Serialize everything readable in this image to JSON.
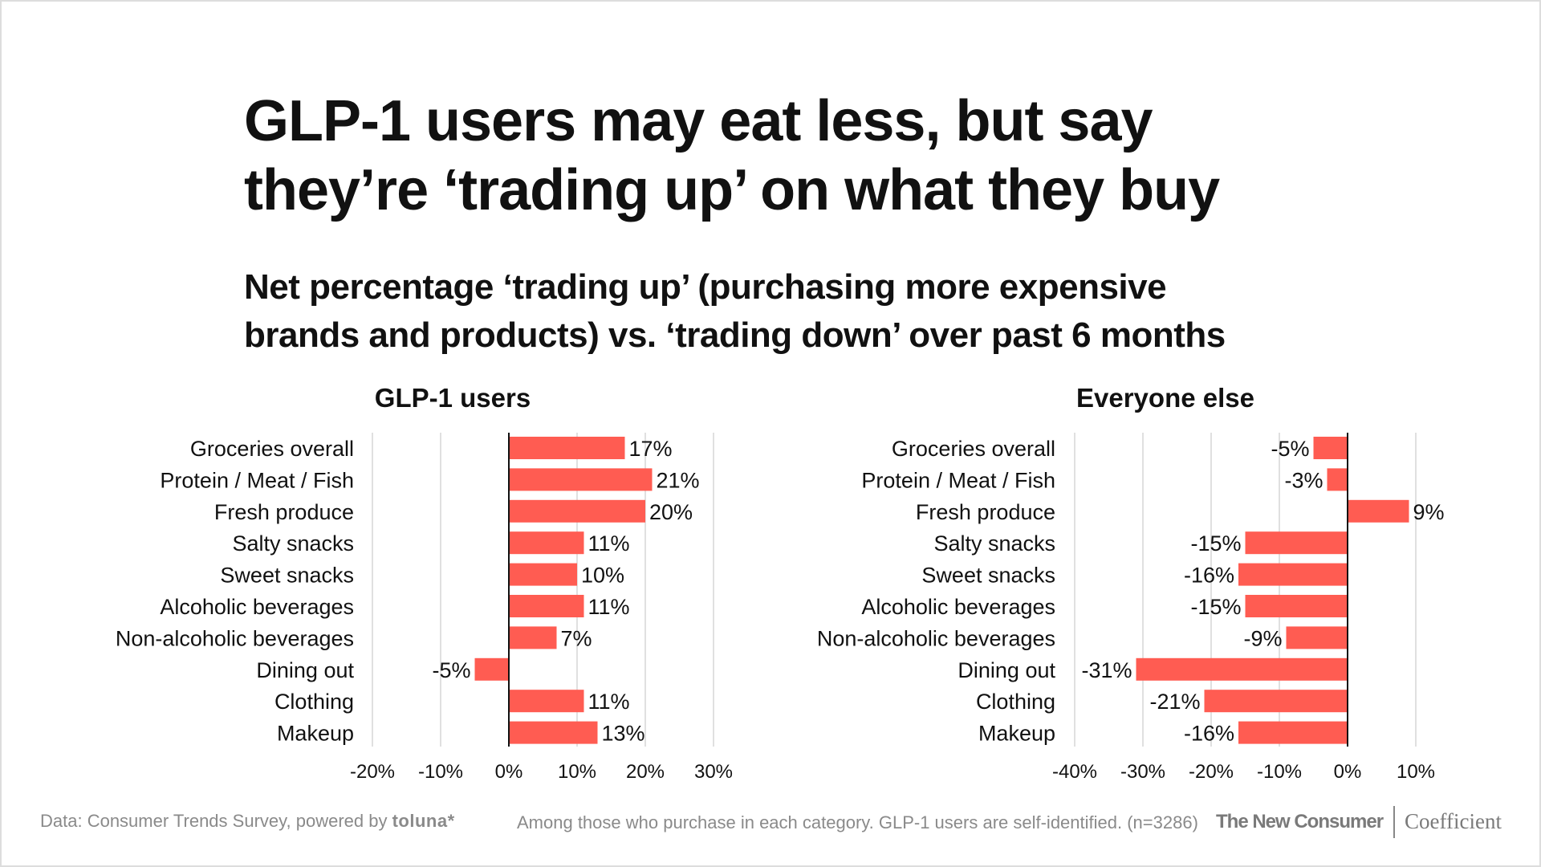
{
  "title_lines": [
    "GLP-1 users may eat less, but say",
    "they’re ‘trading up’ on what they buy"
  ],
  "subtitle_lines": [
    "Net percentage ‘trading up’ (purchasing more expensive",
    "brands and products) vs. ‘trading down’ over past 6 months"
  ],
  "colors": {
    "bar": "#ff5c52",
    "grid": "#d6d6d6",
    "axis": "#111111"
  },
  "chart_data": [
    {
      "type": "bar",
      "orientation": "horizontal",
      "title": "GLP-1 users",
      "categories": [
        "Groceries overall",
        "Protein / Meat / Fish",
        "Fresh produce",
        "Salty snacks",
        "Sweet snacks",
        "Alcoholic beverages",
        "Non-alcoholic beverages",
        "Dining out",
        "Clothing",
        "Makeup"
      ],
      "values": [
        17,
        21,
        20,
        11,
        10,
        11,
        7,
        -5,
        11,
        13
      ],
      "unit": "%",
      "xlim": [
        -20,
        30
      ],
      "ticks": [
        -20,
        -10,
        0,
        10,
        20,
        30
      ],
      "tick_labels": [
        "-20%",
        "-10%",
        "0%",
        "10%",
        "20%",
        "30%"
      ],
      "grid": true
    },
    {
      "type": "bar",
      "orientation": "horizontal",
      "title": "Everyone else",
      "categories": [
        "Groceries overall",
        "Protein / Meat / Fish",
        "Fresh produce",
        "Salty snacks",
        "Sweet snacks",
        "Alcoholic beverages",
        "Non-alcoholic beverages",
        "Dining out",
        "Clothing",
        "Makeup"
      ],
      "values": [
        -5,
        -3,
        9,
        -15,
        -16,
        -15,
        -9,
        -31,
        -21,
        -16
      ],
      "unit": "%",
      "xlim": [
        -40,
        10
      ],
      "ticks": [
        -40,
        -30,
        -20,
        -10,
        0,
        10
      ],
      "tick_labels": [
        "-40%",
        "-30%",
        "-20%",
        "-10%",
        "0%",
        "10%"
      ],
      "grid": true
    }
  ],
  "footer": {
    "source_prefix": "Data: Consumer Trends Survey, powered by ",
    "source_brand": "toluna*",
    "note": "Among those who purchase in each category. GLP-1 users are self-identified. (n=3286)",
    "logo_left": "The New Consumer",
    "logo_right": "Coefficient"
  }
}
